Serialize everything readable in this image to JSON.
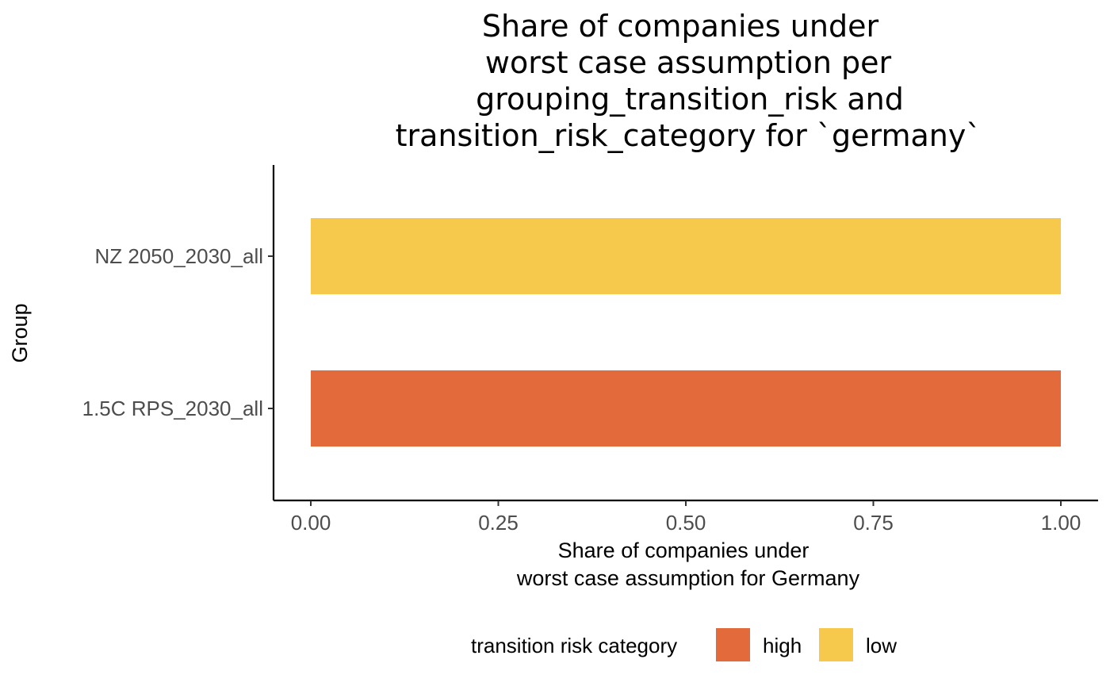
{
  "chart_data": {
    "type": "bar",
    "orientation": "horizontal",
    "title": [
      "Share of companies under",
      "worst case assumption per",
      "grouping_transition_risk and",
      "transition_risk_category for `germany`"
    ],
    "xlabel": [
      "Share of companies under",
      "worst case assumption for Germany"
    ],
    "ylabel": "Group",
    "categories": [
      "NZ 2050_2030_all",
      "1.5C RPS_2030_all"
    ],
    "series": [
      {
        "name": "high",
        "color": "#E36A3B",
        "values": [
          0,
          1.0
        ]
      },
      {
        "name": "low",
        "color": "#F6C94D",
        "values": [
          1.0,
          0
        ]
      }
    ],
    "xlim": [
      0,
      1
    ],
    "xticks": [
      0,
      0.25,
      0.5,
      0.75,
      1.0
    ],
    "xtick_labels": [
      "0.00",
      "0.25",
      "0.50",
      "0.75",
      "1.00"
    ],
    "grid": false,
    "legend": {
      "title": "transition risk category",
      "position": "bottom",
      "entries": [
        "high",
        "low"
      ]
    }
  }
}
